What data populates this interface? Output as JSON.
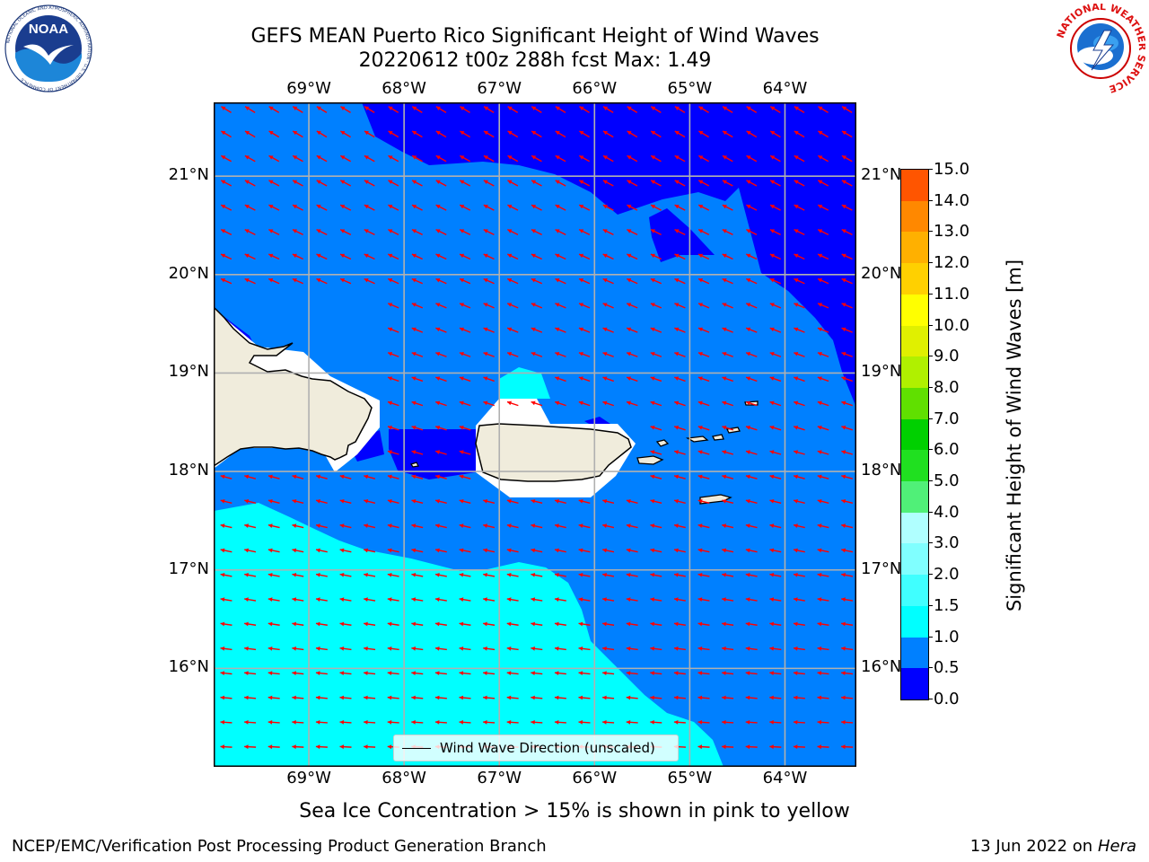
{
  "header": {
    "title_line1": "GEFS MEAN Puerto Rico Significant Height of Wind Waves",
    "title_line2": "20220612 t00z 288h fcst   Max: 1.49"
  },
  "logos": {
    "noaa": {
      "text": "NOAA",
      "ring_text": "NATIONAL OCEANIC AND ATMOSPHERIC ADMINISTRATION · U.S. DEPARTMENT OF COMMERCE"
    },
    "nws": {
      "ring_text": "NATIONAL WEATHER SERVICE"
    }
  },
  "map": {
    "lon_labels": [
      "69°W",
      "68°W",
      "67°W",
      "66°W",
      "65°W",
      "64°W"
    ],
    "lat_labels": [
      "21°N",
      "20°N",
      "19°N",
      "18°N",
      "17°N",
      "16°N"
    ],
    "lon_values": [
      -69,
      -68,
      -67,
      -66,
      -65,
      -64
    ],
    "lat_values": [
      21,
      20,
      19,
      18,
      17,
      16
    ],
    "extent": {
      "lon": [
        -70.0,
        -63.25
      ],
      "lat": [
        15.0,
        21.75
      ]
    },
    "grid": true,
    "arrow_direction": "westward, slightly south",
    "legend": {
      "label": "Wind Wave Direction (unscaled)"
    }
  },
  "colorbar": {
    "title": "Significant Height of Wind Waves [m]",
    "tick_labels": [
      "15.0",
      "14.0",
      "13.0",
      "12.0",
      "11.0",
      "10.0",
      "9.0",
      "8.0",
      "7.0",
      "6.0",
      "5.0",
      "4.0",
      "3.0",
      "2.0",
      "1.5",
      "1.0",
      "0.5",
      "0.0"
    ],
    "colors": [
      "#0000ff",
      "#0080ff",
      "#00ffff",
      "#40ffff",
      "#80ffff",
      "#b0ffff",
      "#50f078",
      "#20e020",
      "#00d000",
      "#60e000",
      "#b0f000",
      "#e0f000",
      "#ffff00",
      "#ffd000",
      "#ffb000",
      "#ff8800",
      "#ff5500",
      "#ff2000",
      "#ff0000"
    ]
  },
  "colors": {
    "band_0_05": "#0000ff",
    "band_05_10": "#0080ff",
    "band_10_15": "#00ffff",
    "land": "#f0ecdc",
    "arrow": "#ff0000"
  },
  "caption": "Sea Ice Concentration > 15% is shown in pink to yellow",
  "footer": {
    "left": "NCEP/EMC/Verification Post Processing Product Generation Branch",
    "date": "13 Jun 2022 on",
    "machine": "Hera"
  }
}
